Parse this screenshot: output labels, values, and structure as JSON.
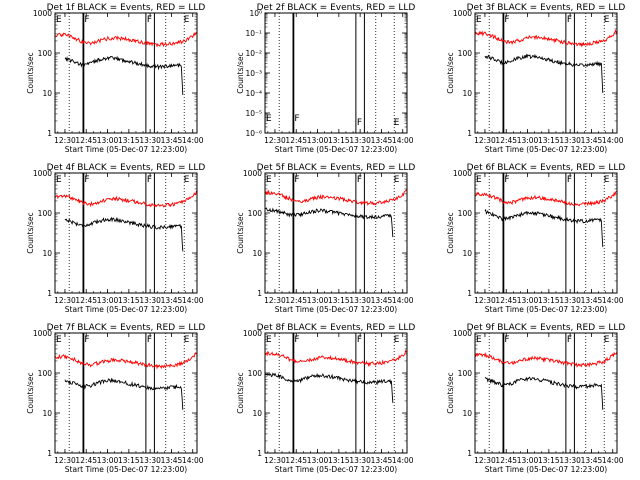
{
  "chart_data": {
    "type": "line",
    "layout": "3x3 grid of small multiples",
    "shared": {
      "xlabel": "Start Time (05-Dec-07 12:23:00)",
      "ylabel": "Counts/sec",
      "x_ticks": [
        "12:30",
        "12:45",
        "13:00",
        "13:15",
        "13:30",
        "13:45",
        "14:00"
      ],
      "xlim": [
        "12:23",
        "14:03"
      ],
      "y_scale": "log",
      "y_ticks_default": [
        "1",
        "10",
        "100",
        "1000"
      ],
      "ylim_default": [
        1,
        1000
      ],
      "colors": {
        "events": "#000000",
        "lld": "#ff0000"
      },
      "dotted_vertical_lines": [
        "12:33",
        "13:41",
        "13:54"
      ],
      "grid": false,
      "legend": "none"
    },
    "panels": [
      {
        "title": "Det 1f BLACK = Events, RED = LLD",
        "solid_vertical_lines": [
          "12:43",
          "13:27",
          "13:33"
        ],
        "markers": [
          {
            "label": "E",
            "x": "12:23"
          },
          {
            "label": "F",
            "x": "12:43"
          },
          {
            "label": "F",
            "x": "13:27"
          },
          {
            "label": "E",
            "x": "13:53"
          }
        ],
        "series": [
          {
            "name": "Events",
            "x": [
              "12:30",
              "12:36",
              "12:42",
              "12:48",
              "12:54",
              "13:00",
              "13:06",
              "13:12",
              "13:18",
              "13:24",
              "13:30",
              "13:36",
              "13:42",
              "13:48",
              "13:52",
              "13:53"
            ],
            "values": [
              75,
              62,
              50,
              55,
              68,
              75,
              72,
              65,
              58,
              52,
              48,
              45,
              47,
              50,
              48,
              9
            ]
          },
          {
            "name": "LLD",
            "x": [
              "12:23",
              "12:30",
              "12:36",
              "12:42",
              "12:48",
              "12:54",
              "13:00",
              "13:06",
              "13:12",
              "13:18",
              "13:24",
              "13:30",
              "13:36",
              "13:42",
              "13:48",
              "13:54",
              "14:00",
              "14:03"
            ],
            "values": [
              280,
              290,
              245,
              190,
              175,
              200,
              230,
              240,
              225,
              205,
              185,
              170,
              160,
              165,
              175,
              195,
              270,
              340
            ]
          }
        ]
      },
      {
        "title": "Det 2f BLACK = Events, RED = LLD",
        "y_ticks": [
          "10⁻⁶",
          "10⁻⁵",
          "10⁻⁴",
          "10⁻³",
          "10⁻²",
          "10⁻¹",
          "10⁰"
        ],
        "ylim": [
          1e-06,
          1
        ],
        "solid_vertical_lines": [
          "12:43",
          "13:27",
          "13:33"
        ],
        "markers": [
          {
            "label": "E",
            "x": "12:23"
          },
          {
            "label": "F",
            "x": "12:43"
          },
          {
            "label": "F",
            "x": "13:27"
          },
          {
            "label": "E",
            "x": "13:53"
          }
        ],
        "series": []
      },
      {
        "title": "Det 3f BLACK = Events, RED = LLD",
        "solid_vertical_lines": [
          "12:43",
          "13:27",
          "13:33"
        ],
        "markers": [
          {
            "label": "E",
            "x": "12:23"
          },
          {
            "label": "F",
            "x": "12:43"
          },
          {
            "label": "F",
            "x": "13:27"
          },
          {
            "label": "E",
            "x": "13:53"
          }
        ],
        "series": [
          {
            "name": "Events",
            "x": [
              "12:30",
              "12:36",
              "12:42",
              "12:48",
              "12:54",
              "13:00",
              "13:06",
              "13:12",
              "13:18",
              "13:24",
              "13:30",
              "13:36",
              "13:42",
              "13:48",
              "13:52",
              "13:53"
            ],
            "values": [
              85,
              70,
              58,
              62,
              75,
              82,
              80,
              72,
              63,
              57,
              52,
              48,
              50,
              55,
              52,
              10
            ]
          },
          {
            "name": "LLD",
            "x": [
              "12:23",
              "12:30",
              "12:36",
              "12:42",
              "12:48",
              "12:54",
              "13:00",
              "13:06",
              "13:12",
              "13:18",
              "13:24",
              "13:30",
              "13:36",
              "13:42",
              "13:48",
              "13:54",
              "14:00",
              "14:03"
            ],
            "values": [
              300,
              310,
              260,
              200,
              180,
              205,
              240,
              250,
              235,
              212,
              192,
              178,
              165,
              170,
              182,
              205,
              280,
              360
            ]
          }
        ]
      },
      {
        "title": "Det 4f BLACK = Events, RED = LLD",
        "solid_vertical_lines": [
          "12:43",
          "13:27",
          "13:33"
        ],
        "markers": [
          {
            "label": "E",
            "x": "12:23"
          },
          {
            "label": "F",
            "x": "12:43"
          },
          {
            "label": "F",
            "x": "13:27"
          },
          {
            "label": "E",
            "x": "13:53"
          }
        ],
        "series": [
          {
            "name": "Events",
            "x": [
              "12:30",
              "12:36",
              "12:42",
              "12:48",
              "12:54",
              "13:00",
              "13:06",
              "13:12",
              "13:18",
              "13:24",
              "13:30",
              "13:36",
              "13:42",
              "13:48",
              "13:52",
              "13:53"
            ],
            "values": [
              70,
              58,
              48,
              52,
              63,
              70,
              68,
              62,
              55,
              50,
              46,
              43,
              45,
              48,
              46,
              11
            ]
          },
          {
            "name": "LLD",
            "x": [
              "12:23",
              "12:30",
              "12:36",
              "12:42",
              "12:48",
              "12:54",
              "13:00",
              "13:06",
              "13:12",
              "13:18",
              "13:24",
              "13:30",
              "13:36",
              "13:42",
              "13:48",
              "13:54",
              "14:00",
              "14:03"
            ],
            "values": [
              260,
              270,
              230,
              180,
              165,
              190,
              215,
              225,
              212,
              195,
              178,
              162,
              152,
              158,
              168,
              190,
              260,
              330
            ]
          }
        ]
      },
      {
        "title": "Det 5f BLACK = Events, RED = LLD",
        "solid_vertical_lines": [
          "12:43",
          "13:27",
          "13:33"
        ],
        "markers": [
          {
            "label": "E",
            "x": "12:23"
          },
          {
            "label": "F",
            "x": "12:43"
          },
          {
            "label": "F",
            "x": "13:27"
          },
          {
            "label": "E",
            "x": "13:53"
          }
        ],
        "series": [
          {
            "name": "Events",
            "x": [
              "12:23",
              "12:30",
              "12:36",
              "12:42",
              "12:48",
              "12:54",
              "13:00",
              "13:06",
              "13:12",
              "13:18",
              "13:24",
              "13:30",
              "13:36",
              "13:42",
              "13:48",
              "13:52",
              "13:53"
            ],
            "values": [
              125,
              115,
              100,
              88,
              92,
              105,
              115,
              112,
              105,
              95,
              88,
              82,
              78,
              80,
              85,
              82,
              25
            ]
          },
          {
            "name": "LLD",
            "x": [
              "12:23",
              "12:30",
              "12:36",
              "12:42",
              "12:48",
              "12:54",
              "13:00",
              "13:06",
              "13:12",
              "13:18",
              "13:24",
              "13:30",
              "13:36",
              "13:42",
              "13:48",
              "13:54",
              "14:00",
              "14:03"
            ],
            "values": [
              320,
              310,
              265,
              215,
              195,
              215,
              245,
              255,
              240,
              220,
              200,
              185,
              175,
              178,
              190,
              215,
              290,
              360
            ]
          }
        ]
      },
      {
        "title": "Det 6f BLACK = Events, RED = LLD",
        "solid_vertical_lines": [
          "12:43",
          "13:27",
          "13:33"
        ],
        "markers": [
          {
            "label": "E",
            "x": "12:23"
          },
          {
            "label": "F",
            "x": "12:43"
          },
          {
            "label": "F",
            "x": "13:27"
          },
          {
            "label": "E",
            "x": "13:53"
          }
        ],
        "series": [
          {
            "name": "Events",
            "x": [
              "12:30",
              "12:36",
              "12:42",
              "12:48",
              "12:54",
              "13:00",
              "13:06",
              "13:12",
              "13:18",
              "13:24",
              "13:30",
              "13:36",
              "13:42",
              "13:48",
              "13:52",
              "13:53"
            ],
            "values": [
              110,
              90,
              72,
              76,
              90,
              100,
              98,
              90,
              80,
              72,
              66,
              62,
              64,
              68,
              65,
              14
            ]
          },
          {
            "name": "LLD",
            "x": [
              "12:23",
              "12:30",
              "12:36",
              "12:42",
              "12:48",
              "12:54",
              "13:00",
              "13:06",
              "13:12",
              "13:18",
              "13:24",
              "13:30",
              "13:36",
              "13:42",
              "13:48",
              "13:54",
              "14:00",
              "14:03"
            ],
            "values": [
              290,
              300,
              255,
              200,
              180,
              205,
              235,
              245,
              230,
              208,
              190,
              175,
              165,
              168,
              180,
              200,
              275,
              350
            ]
          }
        ]
      },
      {
        "title": "Det 7f BLACK = Events, RED = LLD",
        "solid_vertical_lines": [
          "12:43",
          "13:27",
          "13:33"
        ],
        "markers": [
          {
            "label": "E",
            "x": "12:23"
          },
          {
            "label": "F",
            "x": "12:43"
          },
          {
            "label": "F",
            "x": "13:27"
          },
          {
            "label": "E",
            "x": "13:53"
          }
        ],
        "series": [
          {
            "name": "Events",
            "x": [
              "12:30",
              "12:36",
              "12:42",
              "12:48",
              "12:54",
              "13:00",
              "13:06",
              "13:12",
              "13:18",
              "13:24",
              "13:30",
              "13:36",
              "13:42",
              "13:48",
              "13:52",
              "13:53"
            ],
            "values": [
              65,
              55,
              45,
              48,
              58,
              65,
              63,
              57,
              51,
              46,
              42,
              40,
              42,
              45,
              43,
              12
            ]
          },
          {
            "name": "LLD",
            "x": [
              "12:23",
              "12:30",
              "12:36",
              "12:42",
              "12:48",
              "12:54",
              "13:00",
              "13:06",
              "13:12",
              "13:18",
              "13:24",
              "13:30",
              "13:36",
              "13:42",
              "13:48",
              "13:54",
              "14:00",
              "14:03"
            ],
            "values": [
              250,
              260,
              220,
              172,
              158,
              180,
              205,
              215,
              202,
              185,
              168,
              155,
              146,
              150,
              160,
              182,
              250,
              320
            ]
          }
        ]
      },
      {
        "title": "Det 8f BLACK = Events, RED = LLD",
        "solid_vertical_lines": [
          "12:43",
          "13:27",
          "13:33"
        ],
        "markers": [
          {
            "label": "E",
            "x": "12:23"
          },
          {
            "label": "F",
            "x": "12:43"
          },
          {
            "label": "F",
            "x": "13:27"
          },
          {
            "label": "E",
            "x": "13:53"
          }
        ],
        "series": [
          {
            "name": "Events",
            "x": [
              "12:23",
              "12:30",
              "12:36",
              "12:42",
              "12:48",
              "12:54",
              "13:00",
              "13:06",
              "13:12",
              "13:18",
              "13:24",
              "13:30",
              "13:36",
              "13:42",
              "13:48",
              "13:52",
              "13:53"
            ],
            "values": [
              92,
              88,
              75,
              62,
              66,
              78,
              86,
              84,
              78,
              70,
              64,
              60,
              57,
              58,
              62,
              60,
              18
            ]
          },
          {
            "name": "LLD",
            "x": [
              "12:23",
              "12:30",
              "12:36",
              "12:42",
              "12:48",
              "12:54",
              "13:00",
              "13:06",
              "13:12",
              "13:18",
              "13:24",
              "13:30",
              "13:36",
              "13:42",
              "13:48",
              "13:54",
              "14:00",
              "14:03"
            ],
            "values": [
              310,
              300,
              258,
              208,
              188,
              208,
              238,
              248,
              233,
              213,
              195,
              180,
              170,
              173,
              185,
              208,
              282,
              355
            ]
          }
        ]
      },
      {
        "title": "Det 9f BLACK = Events, RED = LLD",
        "solid_vertical_lines": [
          "12:43",
          "13:27",
          "13:33"
        ],
        "markers": [
          {
            "label": "E",
            "x": "12:23"
          },
          {
            "label": "F",
            "x": "12:43"
          },
          {
            "label": "F",
            "x": "13:27"
          },
          {
            "label": "E",
            "x": "13:53"
          }
        ],
        "series": [
          {
            "name": "Events",
            "x": [
              "12:30",
              "12:36",
              "12:42",
              "12:48",
              "12:54",
              "13:00",
              "13:06",
              "13:12",
              "13:18",
              "13:24",
              "13:30",
              "13:36",
              "13:42",
              "13:48",
              "13:52",
              "13:53"
            ],
            "values": [
              72,
              60,
              50,
              54,
              65,
              72,
              70,
              64,
              57,
              51,
              47,
              44,
              46,
              49,
              47,
              12
            ]
          },
          {
            "name": "LLD",
            "x": [
              "12:23",
              "12:30",
              "12:36",
              "12:42",
              "12:48",
              "12:54",
              "13:00",
              "13:06",
              "13:12",
              "13:18",
              "13:24",
              "13:30",
              "13:36",
              "13:42",
              "13:48",
              "13:54",
              "14:00",
              "14:03"
            ],
            "values": [
              275,
              285,
              242,
              190,
              172,
              195,
              225,
              235,
              220,
              200,
              182,
              168,
              158,
              162,
              172,
              194,
              268,
              340
            ]
          }
        ]
      }
    ]
  }
}
